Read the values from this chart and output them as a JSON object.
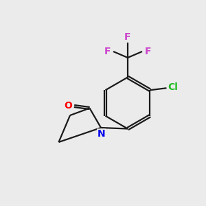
{
  "background_color": "#ebebeb",
  "bond_color": "#1a1a1a",
  "atom_colors": {
    "O": "#ff0000",
    "N": "#0000ee",
    "F": "#cc44cc",
    "Cl": "#22bb22",
    "C": "#1a1a1a"
  },
  "figsize": [
    3.0,
    3.0
  ],
  "dpi": 100,
  "lw": 1.6,
  "fs": 10,
  "sep": 0.1
}
